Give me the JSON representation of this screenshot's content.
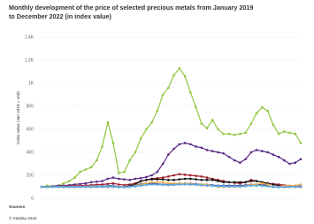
{
  "chart_data": {
    "type": "line",
    "title": "Monthly development of the price of selected precious metals from January 2019 to December 2022 (in index value)",
    "ylabel": "Index value (Jan 2019 = 100)",
    "source_title": "Sources",
    "source_credit": "© Statista 2023",
    "ylim": [
      0,
      1400
    ],
    "yticks": [
      0,
      200,
      400,
      600,
      800,
      {
        "value": 1000,
        "label": "1K"
      },
      {
        "value": 1200,
        "label": "1.2K"
      },
      {
        "value": 1400,
        "label": "1.4K"
      }
    ],
    "grid": true,
    "series": [
      {
        "color": "#8fc63f",
        "values": [
          100,
          110,
          105,
          110,
          130,
          150,
          180,
          230,
          250,
          270,
          330,
          450,
          660,
          480,
          220,
          230,
          330,
          400,
          520,
          600,
          660,
          760,
          900,
          960,
          1070,
          1130,
          1060,
          920,
          790,
          650,
          610,
          680,
          600,
          560,
          560,
          550,
          560,
          570,
          650,
          740,
          790,
          760,
          640,
          560,
          580,
          570,
          560,
          480
        ]
      },
      {
        "color": "#5b2a86",
        "values": [
          100,
          100,
          105,
          110,
          110,
          115,
          120,
          125,
          130,
          140,
          145,
          150,
          170,
          180,
          170,
          165,
          160,
          170,
          175,
          185,
          200,
          230,
          300,
          380,
          430,
          470,
          480,
          470,
          450,
          440,
          420,
          410,
          400,
          390,
          360,
          330,
          310,
          340,
          400,
          420,
          410,
          400,
          380,
          360,
          330,
          300,
          310,
          340
        ]
      },
      {
        "color": "#a01c2c",
        "values": [
          100,
          100,
          100,
          102,
          104,
          106,
          108,
          110,
          112,
          115,
          118,
          120,
          125,
          130,
          120,
          115,
          120,
          130,
          150,
          160,
          170,
          175,
          180,
          190,
          200,
          210,
          205,
          200,
          195,
          190,
          180,
          170,
          160,
          150,
          140,
          135,
          130,
          140,
          160,
          150,
          140,
          130,
          125,
          120,
          115,
          110,
          110,
          105
        ]
      },
      {
        "color": "#111111",
        "values": [
          100,
          100,
          100,
          100,
          100,
          100,
          100,
          100,
          100,
          100,
          100,
          100,
          100,
          100,
          100,
          100,
          110,
          120,
          150,
          160,
          165,
          165,
          165,
          160,
          160,
          165,
          170,
          170,
          165,
          160,
          160,
          160,
          150,
          140,
          140,
          140,
          140,
          140,
          150,
          150,
          140,
          130,
          120,
          110,
          100,
          100,
          100,
          100
        ]
      },
      {
        "color": "#1f3d99",
        "values": [
          100,
          100,
          100,
          100,
          100,
          100,
          100,
          100,
          100,
          105,
          105,
          105,
          110,
          110,
          100,
          100,
          105,
          110,
          125,
          130,
          130,
          125,
          120,
          120,
          125,
          130,
          130,
          130,
          125,
          120,
          120,
          115,
          110,
          110,
          110,
          110,
          110,
          115,
          120,
          120,
          120,
          110,
          100,
          100,
          100,
          100,
          105,
          105
        ]
      },
      {
        "color": "#f2a93b",
        "values": [
          100,
          100,
          100,
          100,
          100,
          100,
          100,
          100,
          100,
          100,
          100,
          100,
          100,
          100,
          100,
          100,
          100,
          110,
          120,
          130,
          140,
          140,
          140,
          130,
          130,
          130,
          130,
          130,
          120,
          120,
          120,
          110,
          100,
          100,
          100,
          100,
          100,
          110,
          120,
          120,
          130,
          120,
          100,
          100,
          110,
          110,
          110,
          120
        ]
      },
      {
        "color": "#9aa3ad",
        "values": [
          100,
          100,
          100,
          100,
          100,
          100,
          100,
          102,
          104,
          104,
          104,
          104,
          106,
          106,
          100,
          98,
          100,
          106,
          112,
          118,
          120,
          118,
          116,
          114,
          116,
          118,
          120,
          118,
          116,
          112,
          110,
          108,
          106,
          104,
          104,
          104,
          104,
          108,
          112,
          112,
          110,
          106,
          100,
          98,
          100,
          100,
          102,
          104
        ]
      },
      {
        "color": "#5aa9e6",
        "values": [
          100,
          100,
          100,
          100,
          100,
          100,
          100,
          100,
          100,
          100,
          100,
          100,
          102,
          102,
          96,
          96,
          100,
          104,
          110,
          116,
          120,
          120,
          118,
          116,
          118,
          122,
          124,
          122,
          118,
          114,
          112,
          110,
          106,
          104,
          102,
          102,
          102,
          106,
          110,
          110,
          108,
          104,
          98,
          96,
          98,
          100,
          102,
          104
        ]
      }
    ]
  }
}
